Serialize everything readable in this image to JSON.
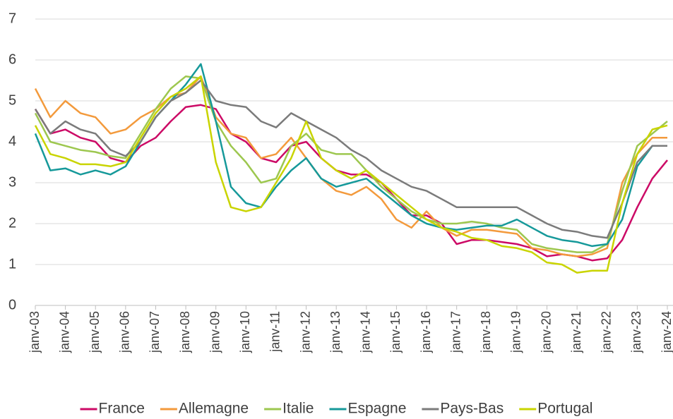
{
  "chart_data": {
    "type": "line",
    "categories": [
      "janv-03",
      null,
      "janv-04",
      null,
      "janv-05",
      null,
      "janv-06",
      null,
      "janv-07",
      null,
      "janv-08",
      null,
      "janv-09",
      null,
      "janv-10",
      null,
      "janv-11",
      null,
      "janv-12",
      null,
      "janv-13",
      null,
      "janv-14",
      null,
      "janv-15",
      null,
      "janv-16",
      null,
      "janv-17",
      null,
      "janv-18",
      null,
      "janv-19",
      null,
      "janv-20",
      null,
      "janv-21",
      null,
      "janv-22",
      null,
      "janv-23",
      null,
      "janv-24"
    ],
    "ylim": [
      0,
      7
    ],
    "yticks": [
      0,
      1,
      2,
      3,
      4,
      5,
      6,
      7
    ],
    "grid": true,
    "legend": "bottom",
    "series": [
      {
        "name": "France",
        "color": "#cc0a66",
        "values": [
          4.8,
          4.2,
          4.3,
          4.1,
          4.0,
          3.6,
          3.5,
          3.9,
          4.1,
          4.5,
          4.85,
          4.9,
          4.8,
          4.2,
          4.0,
          3.6,
          3.5,
          3.9,
          4.0,
          3.6,
          3.3,
          3.2,
          3.2,
          3.0,
          2.6,
          2.2,
          2.2,
          2.0,
          1.5,
          1.6,
          1.6,
          1.55,
          1.5,
          1.4,
          1.2,
          1.25,
          1.2,
          1.1,
          1.15,
          1.6,
          2.4,
          3.1,
          3.55
        ]
      },
      {
        "name": "Allemagne",
        "color": "#f39a3c",
        "values": [
          5.3,
          4.6,
          5.0,
          4.7,
          4.6,
          4.2,
          4.3,
          4.6,
          4.8,
          5.1,
          5.2,
          5.6,
          4.6,
          4.2,
          4.1,
          3.6,
          3.7,
          4.1,
          3.6,
          3.1,
          2.8,
          2.7,
          2.9,
          2.6,
          2.1,
          1.9,
          2.3,
          1.9,
          1.7,
          1.85,
          1.85,
          1.8,
          1.75,
          1.4,
          1.35,
          1.25,
          1.2,
          1.25,
          1.4,
          3.0,
          3.7,
          4.1,
          4.1
        ]
      },
      {
        "name": "Italie",
        "color": "#9dc74f",
        "values": [
          4.7,
          4.0,
          3.9,
          3.8,
          3.75,
          3.65,
          3.6,
          4.2,
          4.8,
          5.3,
          5.6,
          5.55,
          4.5,
          3.9,
          3.5,
          3.0,
          3.1,
          3.9,
          4.2,
          3.8,
          3.7,
          3.7,
          3.3,
          2.9,
          2.6,
          2.3,
          2.1,
          2.0,
          2.0,
          2.05,
          2.0,
          1.9,
          1.85,
          1.5,
          1.4,
          1.35,
          1.3,
          1.3,
          1.5,
          2.8,
          3.9,
          4.2,
          4.5
        ]
      },
      {
        "name": "Espagne",
        "color": "#16999a",
        "values": [
          4.2,
          3.3,
          3.35,
          3.2,
          3.3,
          3.2,
          3.4,
          4.0,
          4.6,
          5.0,
          5.4,
          5.9,
          4.5,
          2.9,
          2.5,
          2.4,
          2.9,
          3.3,
          3.6,
          3.1,
          2.9,
          3.0,
          3.1,
          2.8,
          2.5,
          2.2,
          2.0,
          1.9,
          1.85,
          1.9,
          1.95,
          1.95,
          2.1,
          1.9,
          1.7,
          1.6,
          1.55,
          1.45,
          1.5,
          2.1,
          3.4,
          3.9,
          3.9
        ]
      },
      {
        "name": "Pays-Bas",
        "color": "#7b7b7b",
        "values": [
          4.8,
          4.2,
          4.5,
          4.3,
          4.2,
          3.8,
          3.65,
          4.0,
          4.6,
          5.0,
          5.2,
          5.5,
          5.0,
          4.9,
          4.85,
          4.5,
          4.35,
          4.7,
          4.5,
          4.3,
          4.1,
          3.8,
          3.6,
          3.3,
          3.1,
          2.9,
          2.8,
          2.6,
          2.4,
          2.4,
          2.4,
          2.4,
          2.4,
          2.2,
          2.0,
          1.85,
          1.8,
          1.7,
          1.65,
          2.5,
          3.5,
          3.9,
          3.9
        ]
      },
      {
        "name": "Portugal",
        "color": "#c9d400",
        "values": [
          4.4,
          3.7,
          3.6,
          3.45,
          3.45,
          3.4,
          3.5,
          4.1,
          4.7,
          5.1,
          5.3,
          5.6,
          3.5,
          2.4,
          2.3,
          2.4,
          3.0,
          3.6,
          4.5,
          3.6,
          3.3,
          3.1,
          3.3,
          3.0,
          2.7,
          2.4,
          2.1,
          1.9,
          1.8,
          1.65,
          1.6,
          1.45,
          1.4,
          1.3,
          1.05,
          1.0,
          0.8,
          0.85,
          0.85,
          2.5,
          3.7,
          4.3,
          4.4
        ]
      }
    ]
  }
}
